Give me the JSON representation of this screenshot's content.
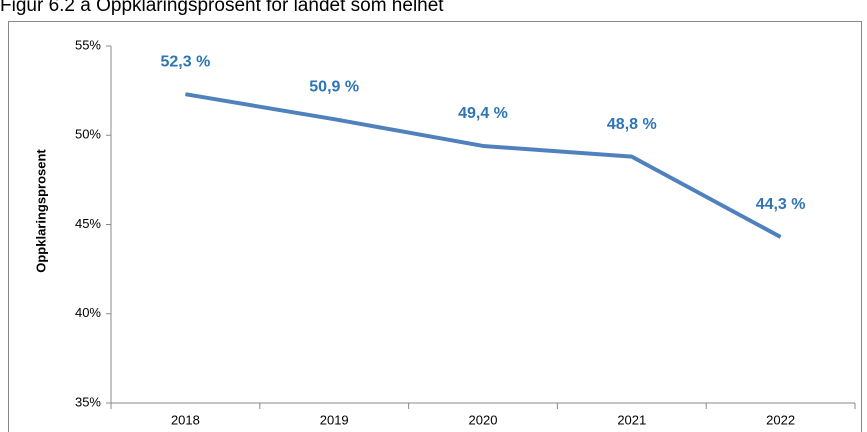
{
  "chart_data": {
    "type": "line",
    "title": "Figur 6.2 a Oppklaringsprosent for landet som helhet",
    "y_label": "Oppklaringsprosent",
    "categories": [
      "2018",
      "2019",
      "2020",
      "2021",
      "2022"
    ],
    "series": [
      {
        "name": "Oppklaringsprosent",
        "color": "#4f81bd",
        "values": [
          52.3,
          50.9,
          49.4,
          48.8,
          44.3
        ],
        "value_labels": [
          "52,3 %",
          "50,9 %",
          "49,4 %",
          "48,8 %",
          "44,3 %"
        ]
      }
    ],
    "label_color": "#2e75b6",
    "ylim": [
      35,
      55
    ],
    "yticks": [
      {
        "value": 35,
        "label": "35%"
      },
      {
        "value": 40,
        "label": "40%"
      },
      {
        "value": 45,
        "label": "45%"
      },
      {
        "value": 50,
        "label": "50%"
      },
      {
        "value": 55,
        "label": "55%"
      }
    ],
    "grid": false
  }
}
